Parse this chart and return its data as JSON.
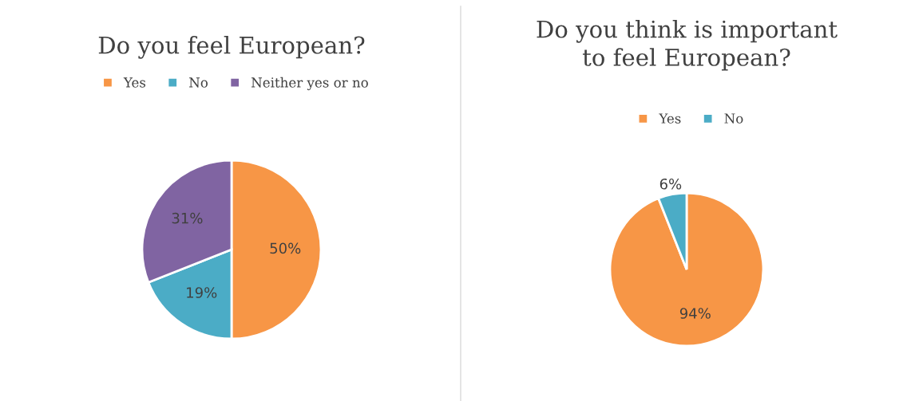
{
  "chart_data": [
    {
      "type": "pie",
      "title": "Do you feel European?",
      "categories": [
        "Yes",
        "No",
        "Neither yes or no"
      ],
      "values": [
        50,
        19,
        31
      ],
      "colors": [
        "#f79646",
        "#4bacc6",
        "#8064a2"
      ],
      "value_labels": [
        "50%",
        "19%",
        "31%"
      ],
      "legend": "top"
    },
    {
      "type": "pie",
      "title": "Do you think is important\nto feel European?",
      "categories": [
        "Yes",
        "No"
      ],
      "values": [
        94,
        6
      ],
      "colors": [
        "#f79646",
        "#4bacc6"
      ],
      "value_labels": [
        "94%",
        "6%"
      ],
      "legend": "top"
    }
  ]
}
